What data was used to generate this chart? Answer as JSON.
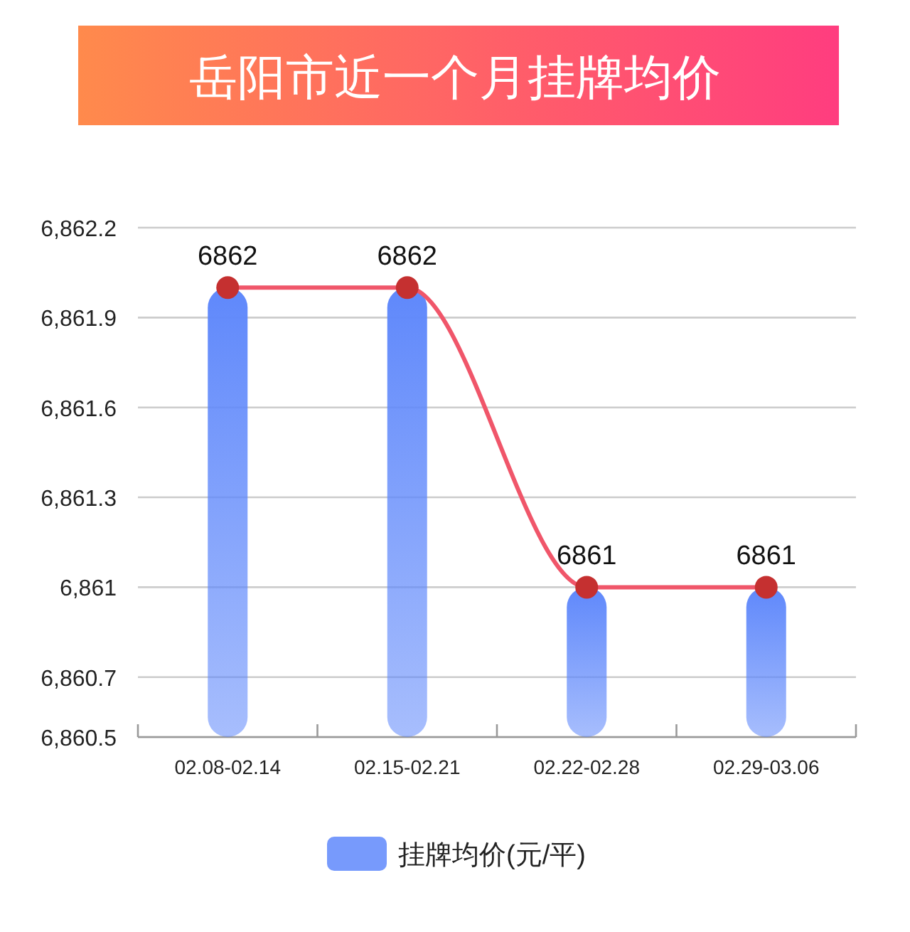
{
  "chart_data": {
    "type": "bar",
    "title": "岳阳市近一个月挂牌均价",
    "categories": [
      "02.08-02.14",
      "02.15-02.21",
      "02.22-02.28",
      "02.29-03.06"
    ],
    "series": [
      {
        "name": "挂牌均价(元/平)",
        "color": "#5f88fb",
        "values": [
          6862,
          6862,
          6861,
          6861
        ]
      },
      {
        "type": "line",
        "color": "#f0566a",
        "marker": "circle",
        "values": [
          6862,
          6862,
          6861,
          6861
        ],
        "value_labels": [
          "6862",
          "6862",
          "6861",
          "6861"
        ]
      }
    ],
    "ylim": [
      6860.5,
      6862.2
    ],
    "yticks": [
      {
        "value": 6860.5,
        "label": "6,860.5"
      },
      {
        "value": 6860.7,
        "label": "6,860.7"
      },
      {
        "value": 6861,
        "label": "6,861"
      },
      {
        "value": 6861.3,
        "label": "6,861.3"
      },
      {
        "value": 6861.6,
        "label": "6,861.6"
      },
      {
        "value": 6861.9,
        "label": "6,861.9"
      },
      {
        "value": 6862.2,
        "label": "6,862.2"
      }
    ],
    "grid": "y",
    "legend": "bottom"
  }
}
